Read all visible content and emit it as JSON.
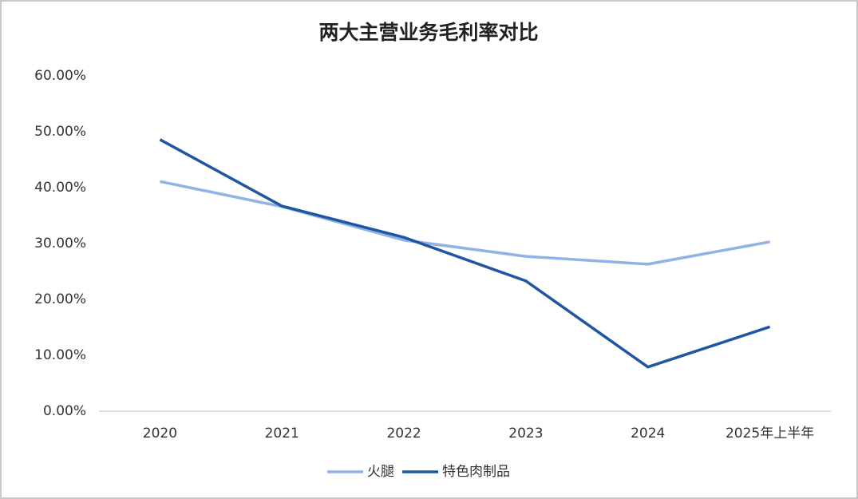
{
  "chart_data": {
    "type": "line",
    "title": "两大主营业务毛利率对比",
    "categories": [
      "2020",
      "2021",
      "2022",
      "2023",
      "2024",
      "2025年上半年"
    ],
    "series": [
      {
        "name": "火腿",
        "color": "#8fb4e3",
        "values": [
          41.1,
          36.6,
          30.6,
          27.7,
          26.3,
          30.3
        ]
      },
      {
        "name": "特色肉制品",
        "color": "#1f56a3",
        "values": [
          48.6,
          36.7,
          31.1,
          23.3,
          7.9,
          15.1
        ]
      }
    ],
    "ylim": [
      0,
      60
    ],
    "yticks": [
      {
        "value": 0,
        "label": "0.00%"
      },
      {
        "value": 10,
        "label": "10.00%"
      },
      {
        "value": 20,
        "label": "20.00%"
      },
      {
        "value": 30,
        "label": "30.00%"
      },
      {
        "value": 40,
        "label": "40.00%"
      },
      {
        "value": 50,
        "label": "50.00%"
      },
      {
        "value": 60,
        "label": "60.00%"
      }
    ],
    "grid": false,
    "legend": "bottom"
  }
}
